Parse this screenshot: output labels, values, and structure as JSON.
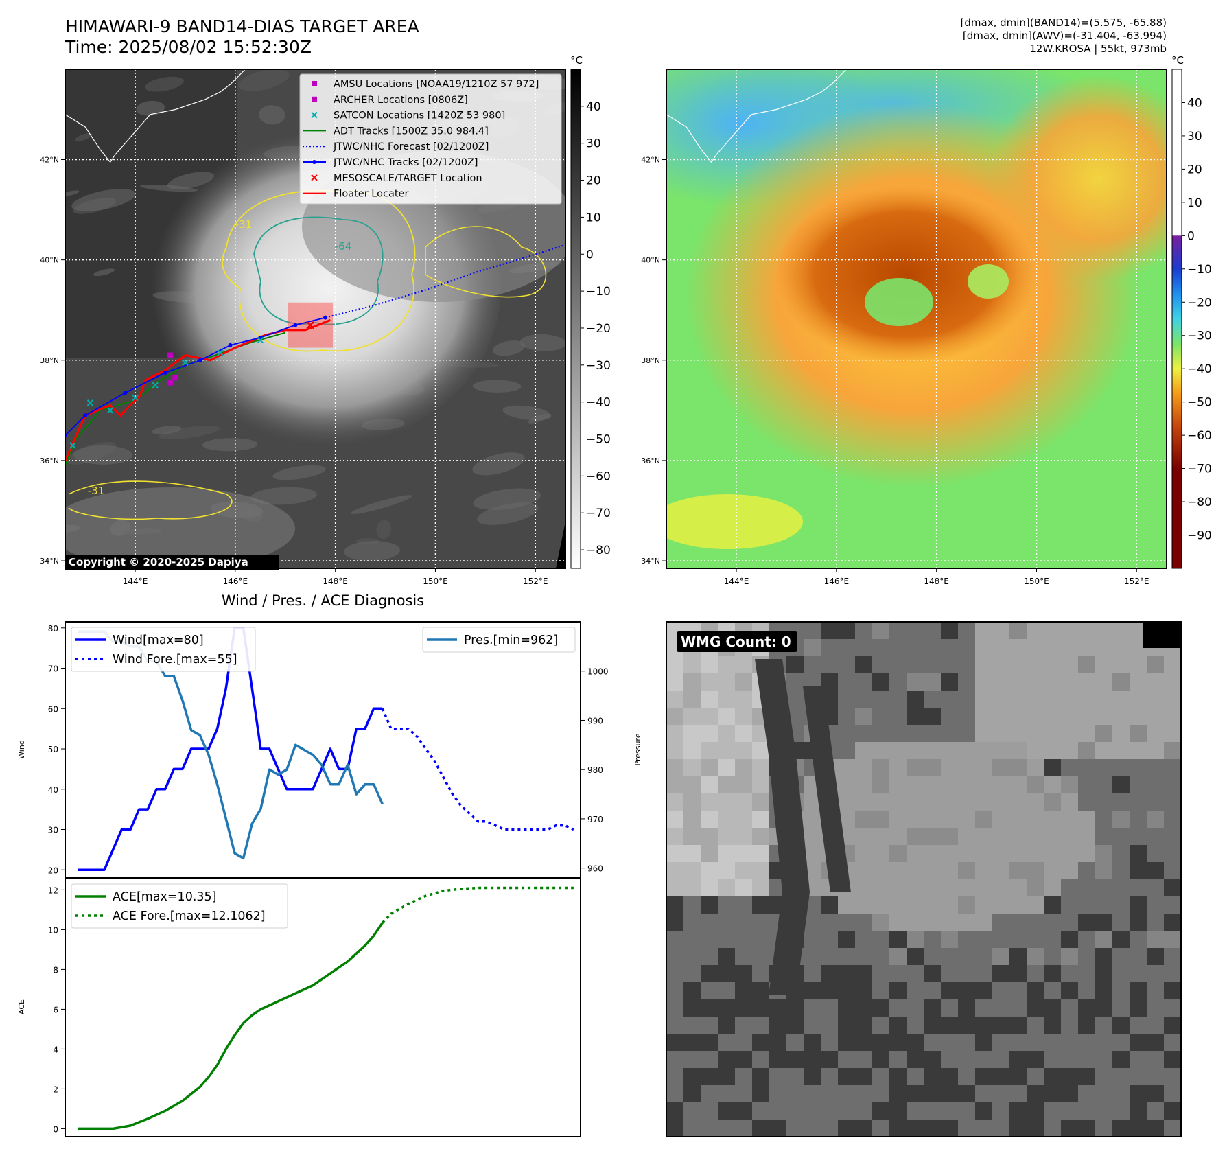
{
  "header": {
    "title": "HIMAWARI-9 BAND14-DIAS TARGET AREA",
    "time": "Time: 2025/08/02 15:52:30Z",
    "stats": [
      "[dmax, dmin](BAND14)=(5.575, -65.88)",
      "[dmax, dmin](AWV)=(-31.404, -63.994)",
      "12W.KROSA | 55kt, 973mb"
    ]
  },
  "map": {
    "lat_labels": [
      "42°N",
      "40°N",
      "38°N",
      "36°N",
      "34°N"
    ],
    "lat_values": [
      42,
      40,
      38,
      36,
      34
    ],
    "lon_labels": [
      "144°E",
      "146°E",
      "148°E",
      "150°E",
      "152°E"
    ],
    "lon_values": [
      144,
      146,
      148,
      150,
      152
    ],
    "extent": {
      "lon": [
        142.6,
        152.6
      ],
      "lat": [
        33.85,
        43.8
      ]
    },
    "copyright": "Copyright © 2020-2025 Dapiya",
    "contour_labels": [
      "-31",
      "-64",
      "-31"
    ],
    "legend": [
      {
        "label": "AMSU Locations [NOAA19/1210Z 57 972]",
        "marker": "square",
        "color": "#c000c0"
      },
      {
        "label": "ARCHER Locations [0806Z]",
        "marker": "square",
        "color": "#c000c0"
      },
      {
        "label": "SATCON Locations [1420Z 53 980]",
        "marker": "x",
        "color": "#00b0b0"
      },
      {
        "label": "ADT Tracks [1500Z 35.0 984.4]",
        "marker": "line",
        "color": "#008000"
      },
      {
        "label": "JTWC/NHC Forecast [02/1200Z]",
        "marker": "dotted",
        "color": "#0000ff"
      },
      {
        "label": "JTWC/NHC Tracks [02/1200Z]",
        "marker": "line-dot",
        "color": "#0000ff"
      },
      {
        "label": "MESOSCALE/TARGET Location",
        "marker": "x",
        "color": "#ff0000"
      },
      {
        "label": "Floater Locater",
        "marker": "line",
        "color": "#ff0000"
      }
    ],
    "jtwc_track": [
      [
        142.6,
        36.5
      ],
      [
        143.0,
        36.9
      ],
      [
        143.8,
        37.35
      ],
      [
        144.6,
        37.75
      ],
      [
        145.3,
        38.0
      ],
      [
        145.9,
        38.3
      ],
      [
        146.5,
        38.45
      ],
      [
        147.2,
        38.7
      ],
      [
        147.8,
        38.85
      ]
    ],
    "jtwc_forecast": [
      [
        147.8,
        38.85
      ],
      [
        148.8,
        39.1
      ],
      [
        149.8,
        39.4
      ],
      [
        150.8,
        39.75
      ],
      [
        151.8,
        40.05
      ],
      [
        152.6,
        40.3
      ]
    ],
    "floater_track": [
      [
        142.6,
        36.0
      ],
      [
        143.0,
        36.9
      ],
      [
        143.5,
        37.1
      ],
      [
        143.7,
        36.9
      ],
      [
        144.1,
        37.3
      ],
      [
        144.2,
        37.6
      ],
      [
        144.6,
        37.8
      ],
      [
        145.0,
        38.1
      ],
      [
        145.5,
        38.0
      ],
      [
        146.0,
        38.25
      ],
      [
        146.6,
        38.5
      ],
      [
        147.0,
        38.6
      ],
      [
        147.4,
        38.6
      ],
      [
        147.9,
        38.8
      ]
    ],
    "adt_track": [
      [
        142.6,
        35.9
      ],
      [
        142.8,
        36.4
      ],
      [
        143.3,
        37.0
      ],
      [
        144.0,
        37.2
      ],
      [
        144.5,
        37.6
      ],
      [
        145.0,
        37.9
      ],
      [
        145.6,
        38.1
      ],
      [
        146.3,
        38.35
      ],
      [
        147.0,
        38.55
      ]
    ],
    "satcon_points": [
      [
        142.75,
        36.3
      ],
      [
        143.1,
        37.15
      ],
      [
        143.5,
        37.0
      ],
      [
        144.0,
        37.25
      ],
      [
        144.4,
        37.5
      ],
      [
        145.0,
        37.95
      ],
      [
        145.7,
        38.15
      ],
      [
        146.5,
        38.4
      ]
    ],
    "amsu_archer_points": [
      [
        144.7,
        38.1
      ],
      [
        144.8,
        37.65
      ],
      [
        144.7,
        37.55
      ]
    ],
    "target_center": [
      147.5,
      38.7
    ],
    "target_box": {
      "lon": [
        147.05,
        147.95
      ],
      "lat": [
        38.25,
        39.15
      ]
    }
  },
  "colorbar_ir": {
    "unit": "°C",
    "ticks": [
      40,
      30,
      20,
      10,
      0,
      -10,
      -20,
      -30,
      -40,
      -50,
      -60,
      -70,
      -80
    ],
    "labels": [
      "40",
      "30",
      "20",
      "10",
      "0",
      "−10",
      "−20",
      "−30",
      "−40",
      "−50",
      "−60",
      "−70",
      "−80"
    ],
    "range": [
      -85,
      50
    ]
  },
  "colorbar_dias": {
    "unit": "°C",
    "ticks": [
      40,
      30,
      20,
      10,
      0,
      -10,
      -20,
      -30,
      -40,
      -50,
      -60,
      -70,
      -80,
      -90
    ],
    "labels": [
      "40",
      "30",
      "20",
      "10",
      "0",
      "−10",
      "−20",
      "−30",
      "−40",
      "−50",
      "−60",
      "−70",
      "−80",
      "−90"
    ],
    "range": [
      -100,
      50
    ]
  },
  "chart_data": [
    {
      "type": "line",
      "title": "Wind / Pres. / ACE Diagnosis",
      "ylabel": "Wind",
      "y2label": "Pressure",
      "ylim": [
        18,
        81.5
      ],
      "y2lim": [
        958,
        1010
      ],
      "yticks": [
        20,
        30,
        40,
        50,
        60,
        70,
        80
      ],
      "y2ticks": [
        960,
        970,
        980,
        990,
        1000
      ],
      "series": [
        {
          "name": "Wind[max=80]",
          "color": "#0000ff",
          "style": "solid",
          "axis": "left",
          "x": [
            0,
            3,
            5,
            6,
            7,
            8,
            9,
            10,
            11,
            12,
            13,
            14,
            15,
            16,
            17,
            18,
            19,
            20,
            21,
            22,
            23,
            24,
            25,
            26,
            27,
            28,
            29,
            30,
            31,
            32,
            33,
            34,
            35
          ],
          "values": [
            20,
            20,
            30,
            30,
            35,
            35,
            40,
            40,
            45,
            45,
            50,
            50,
            50,
            55,
            65,
            80,
            80,
            65,
            50,
            50,
            45,
            40,
            40,
            40,
            40,
            45,
            50,
            45,
            45,
            55,
            55,
            60,
            60
          ]
        },
        {
          "name": "Wind Fore.[max=55]",
          "color": "#0000ff",
          "style": "dotted",
          "axis": "left",
          "x": [
            35,
            36,
            37,
            38,
            39,
            40,
            41,
            42,
            43,
            44,
            45,
            46,
            47,
            48,
            49,
            50,
            51,
            52,
            53,
            54,
            55,
            56,
            57
          ],
          "values": [
            60,
            55,
            55,
            55,
            53,
            50,
            47,
            43,
            39,
            36,
            34,
            32,
            32,
            31,
            30,
            30,
            30,
            30,
            30,
            30,
            31,
            31,
            30
          ]
        },
        {
          "name": "Pres.[min=962]",
          "color": "#1f77b4",
          "style": "solid",
          "axis": "right",
          "x": [
            0,
            3,
            4,
            5,
            6,
            7,
            8,
            9,
            10,
            11,
            12,
            13,
            14,
            15,
            16,
            17,
            18,
            19,
            20,
            21,
            22,
            23,
            24,
            25,
            26,
            27,
            28,
            29,
            30,
            31,
            32,
            33,
            34,
            35
          ],
          "values": [
            1008,
            1008,
            1006,
            1006,
            1005,
            1005,
            1002,
            1002,
            999,
            999,
            994,
            988,
            987,
            983,
            977,
            970,
            963,
            962,
            969,
            972,
            980,
            979,
            980,
            985,
            984,
            983,
            981,
            977,
            977,
            981,
            975,
            977,
            977,
            973
          ]
        }
      ]
    },
    {
      "type": "line",
      "ylabel": "ACE",
      "ylim": [
        -0.4,
        12.6
      ],
      "yticks": [
        0,
        2,
        4,
        6,
        8,
        10,
        12
      ],
      "series": [
        {
          "name": "ACE[max=10.35]",
          "color": "#008000",
          "style": "solid",
          "x": [
            0,
            2,
            4,
            6,
            8,
            10,
            12,
            14,
            15,
            16,
            17,
            18,
            19,
            20,
            21,
            22,
            23,
            24,
            25,
            26,
            27,
            28,
            29,
            30,
            31,
            32,
            33,
            34,
            35
          ],
          "values": [
            0,
            0,
            0,
            0.15,
            0.5,
            0.9,
            1.4,
            2.1,
            2.6,
            3.2,
            4.0,
            4.7,
            5.3,
            5.7,
            6.0,
            6.2,
            6.4,
            6.6,
            6.8,
            7.0,
            7.2,
            7.5,
            7.8,
            8.1,
            8.4,
            8.8,
            9.2,
            9.7,
            10.35
          ]
        },
        {
          "name": "ACE Fore.[max=12.1062]",
          "color": "#008000",
          "style": "dotted",
          "x": [
            35,
            36,
            38,
            40,
            42,
            44,
            46,
            48,
            50,
            52,
            54,
            56,
            57
          ],
          "values": [
            10.35,
            10.8,
            11.3,
            11.7,
            11.95,
            12.05,
            12.1,
            12.1,
            12.1,
            12.1,
            12.1,
            12.1,
            12.1
          ]
        }
      ]
    }
  ],
  "wmg": {
    "label": "WMG Count: 0"
  },
  "colors": {
    "wind": "#0000ff",
    "pressure": "#1f77b4",
    "ace": "#008000",
    "floater": "#ff0000",
    "amsu": "#c000c0",
    "satcon": "#00b0b0"
  }
}
